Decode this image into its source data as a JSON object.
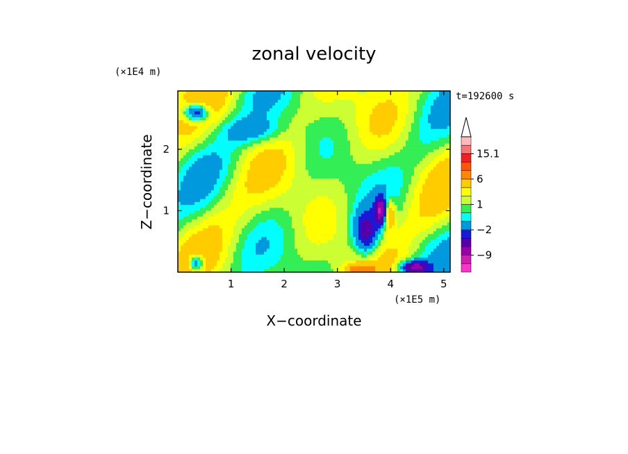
{
  "chart_data": {
    "type": "heatmap",
    "title": "zonal velocity",
    "xlabel": "X−coordinate",
    "ylabel": "Z−coordinate",
    "x_multiplier": "(×1E5 m)",
    "y_multiplier": "(×1E4 m)",
    "time_label": "t=192600 s",
    "xlim": [
      0,
      5.12
    ],
    "ylim": [
      0,
      2.95
    ],
    "x_ticks": [
      1,
      2,
      3,
      4,
      5
    ],
    "y_ticks": [
      1,
      2
    ],
    "colorbar": {
      "levels": [
        -15,
        -12,
        -9,
        -6,
        -4,
        -2,
        -1,
        0,
        1,
        2,
        4,
        6,
        9,
        12,
        15.1
      ],
      "colors": [
        "#ff33cc",
        "#cc1fb0",
        "#9900aa",
        "#5500aa",
        "#1a1ad6",
        "#0099dd",
        "#00ffff",
        "#33ee55",
        "#ccff33",
        "#ffff00",
        "#ffcc00",
        "#ff8800",
        "#ff5500",
        "#ee2222",
        "#ee7777",
        "#ffbbbb"
      ],
      "tick_labels": [
        {
          "value": 15.1,
          "label": "15.1"
        },
        {
          "value": 6,
          "label": "6"
        },
        {
          "value": 1,
          "label": "1"
        },
        {
          "value": -2,
          "label": "−2"
        },
        {
          "value": -9,
          "label": "−9"
        }
      ]
    }
  }
}
